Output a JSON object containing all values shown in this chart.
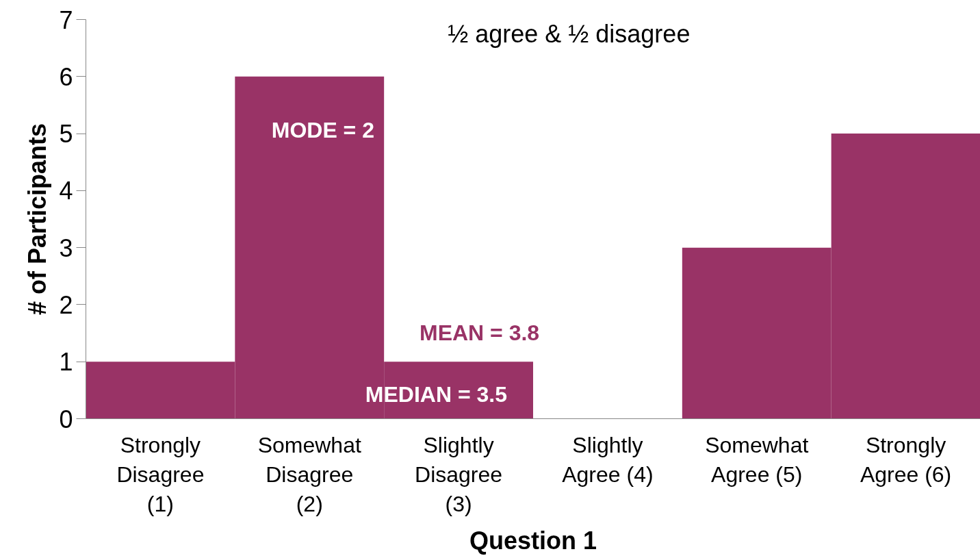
{
  "chart_data": {
    "type": "bar",
    "xlabel": "Question 1",
    "ylabel": "# of Participants",
    "categories": [
      "Strongly\nDisagree\n(1)",
      "Somewhat\nDisagree\n(2)",
      "Slightly\nDisagree\n(3)",
      "Slightly\nAgree (4)",
      "Somewhat\nAgree (5)",
      "Strongly\nAgree (6)"
    ],
    "values": [
      1,
      6,
      1,
      0,
      3,
      5
    ],
    "color": "#993366",
    "ylim": [
      0,
      7
    ],
    "yticks": [
      0,
      1,
      2,
      3,
      4,
      5,
      6,
      7
    ],
    "grid": false,
    "annotations": [
      "½ agree & ½ disagree",
      "MODE = 2",
      "MEAN = 3.8",
      "MEDIAN = 3.5"
    ]
  }
}
